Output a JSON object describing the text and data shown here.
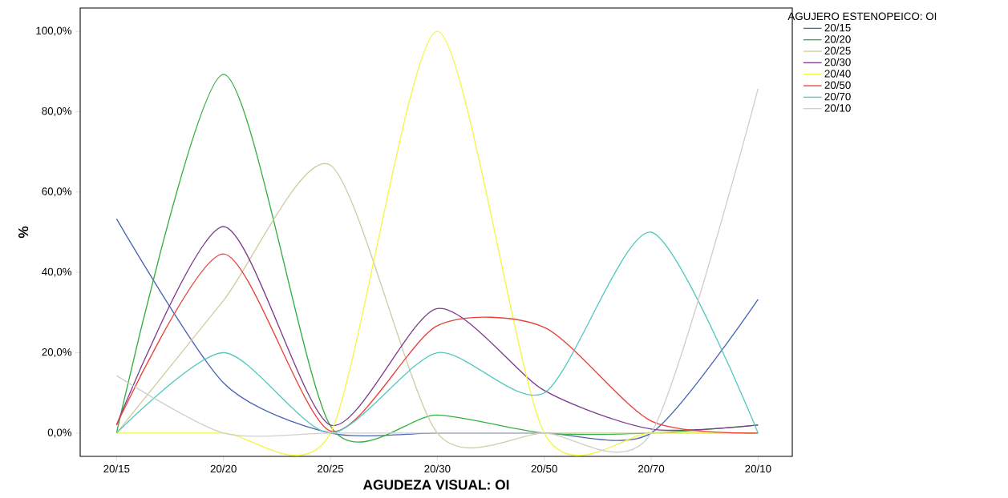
{
  "chart_data": {
    "type": "line",
    "xlabel": "AGUDEZA VISUAL: OI",
    "ylabel": "%",
    "legend_title": "AGUJERO ESTENOPEICO: OI",
    "categories": [
      "20/15",
      "20/20",
      "20/25",
      "20/30",
      "20/50",
      "20/70",
      "20/10"
    ],
    "series": [
      {
        "name": "20/15",
        "color": "#4a64b4",
        "values": [
          53.3,
          12.5,
          0,
          0,
          0,
          0,
          33.3
        ]
      },
      {
        "name": "20/20",
        "color": "#33b040",
        "values": [
          0,
          89.3,
          1.8,
          4.5,
          0,
          0,
          2
        ]
      },
      {
        "name": "20/25",
        "color": "#d0cca0",
        "values": [
          0,
          33,
          66.7,
          0,
          0,
          0,
          0
        ]
      },
      {
        "name": "20/30",
        "color": "#7c3d8c",
        "values": [
          2,
          51.4,
          2,
          31,
          10.6,
          1,
          2
        ]
      },
      {
        "name": "20/40",
        "color": "#f5f545",
        "values": [
          0,
          0,
          0,
          100,
          0,
          0,
          0
        ]
      },
      {
        "name": "20/50",
        "color": "#e8423a",
        "values": [
          2,
          44.6,
          0.5,
          26.7,
          26.3,
          3,
          0
        ]
      },
      {
        "name": "20/70",
        "color": "#55c8c2",
        "values": [
          0,
          20,
          0,
          20,
          10,
          50,
          0
        ]
      },
      {
        "name": "20/10",
        "color": "#cfcfcf",
        "values": [
          14.3,
          0,
          0,
          0,
          0,
          0,
          85.7
        ]
      }
    ],
    "ylim": [
      -5.8,
      105.8
    ],
    "yticks": [
      {
        "value": 0,
        "label": "0,0%"
      },
      {
        "value": 20,
        "label": "20,0%"
      },
      {
        "value": 40,
        "label": "40,0%"
      },
      {
        "value": 60,
        "label": "60,0%"
      },
      {
        "value": 80,
        "label": "80,0%"
      },
      {
        "value": 100,
        "label": "100,0%"
      }
    ],
    "grid": false,
    "legend": "top right",
    "marker": "none",
    "line_style": "solid"
  }
}
